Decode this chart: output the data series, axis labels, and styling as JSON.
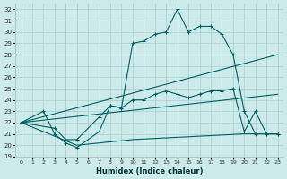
{
  "xlabel": "Humidex (Indice chaleur)",
  "background_color": "#cceaea",
  "grid_color": "#aacccc",
  "line_color": "#006060",
  "xlim": [
    -0.5,
    23.5
  ],
  "ylim": [
    19,
    32.5
  ],
  "xticks": [
    0,
    1,
    2,
    3,
    4,
    5,
    6,
    7,
    8,
    9,
    10,
    11,
    12,
    13,
    14,
    15,
    16,
    17,
    18,
    19,
    20,
    21,
    22,
    23
  ],
  "yticks": [
    19,
    20,
    21,
    22,
    23,
    24,
    25,
    26,
    27,
    28,
    29,
    30,
    31,
    32
  ],
  "series": [
    {
      "x": [
        0,
        2,
        3,
        4,
        5,
        7,
        8,
        9,
        10,
        11,
        12,
        13,
        14,
        15,
        16,
        17,
        18,
        19,
        20,
        21,
        22,
        23
      ],
      "y": [
        22,
        23,
        21,
        20.2,
        19.8,
        21.2,
        23.5,
        23.3,
        29,
        29.2,
        29.8,
        30,
        32,
        30,
        30.5,
        30.5,
        29.8,
        28,
        23,
        21,
        21,
        21
      ],
      "marker": true
    },
    {
      "x": [
        0,
        3,
        4,
        5,
        7,
        8,
        9,
        10,
        11,
        12,
        13,
        14,
        15,
        16,
        17,
        18,
        19,
        20,
        21,
        22,
        23
      ],
      "y": [
        22,
        21.5,
        20.5,
        20.5,
        22.5,
        23.5,
        23.3,
        24,
        24,
        24.5,
        24.8,
        24.5,
        24.2,
        24.5,
        24.8,
        24.8,
        25,
        21.2,
        23,
        21,
        21
      ],
      "marker": true
    },
    {
      "x": [
        0,
        23
      ],
      "y": [
        22,
        28
      ],
      "marker": false
    },
    {
      "x": [
        0,
        23
      ],
      "y": [
        22,
        24.5
      ],
      "marker": false
    },
    {
      "x": [
        0,
        5,
        10,
        20,
        23
      ],
      "y": [
        22,
        20,
        20.5,
        21,
        21
      ],
      "marker": false
    }
  ]
}
